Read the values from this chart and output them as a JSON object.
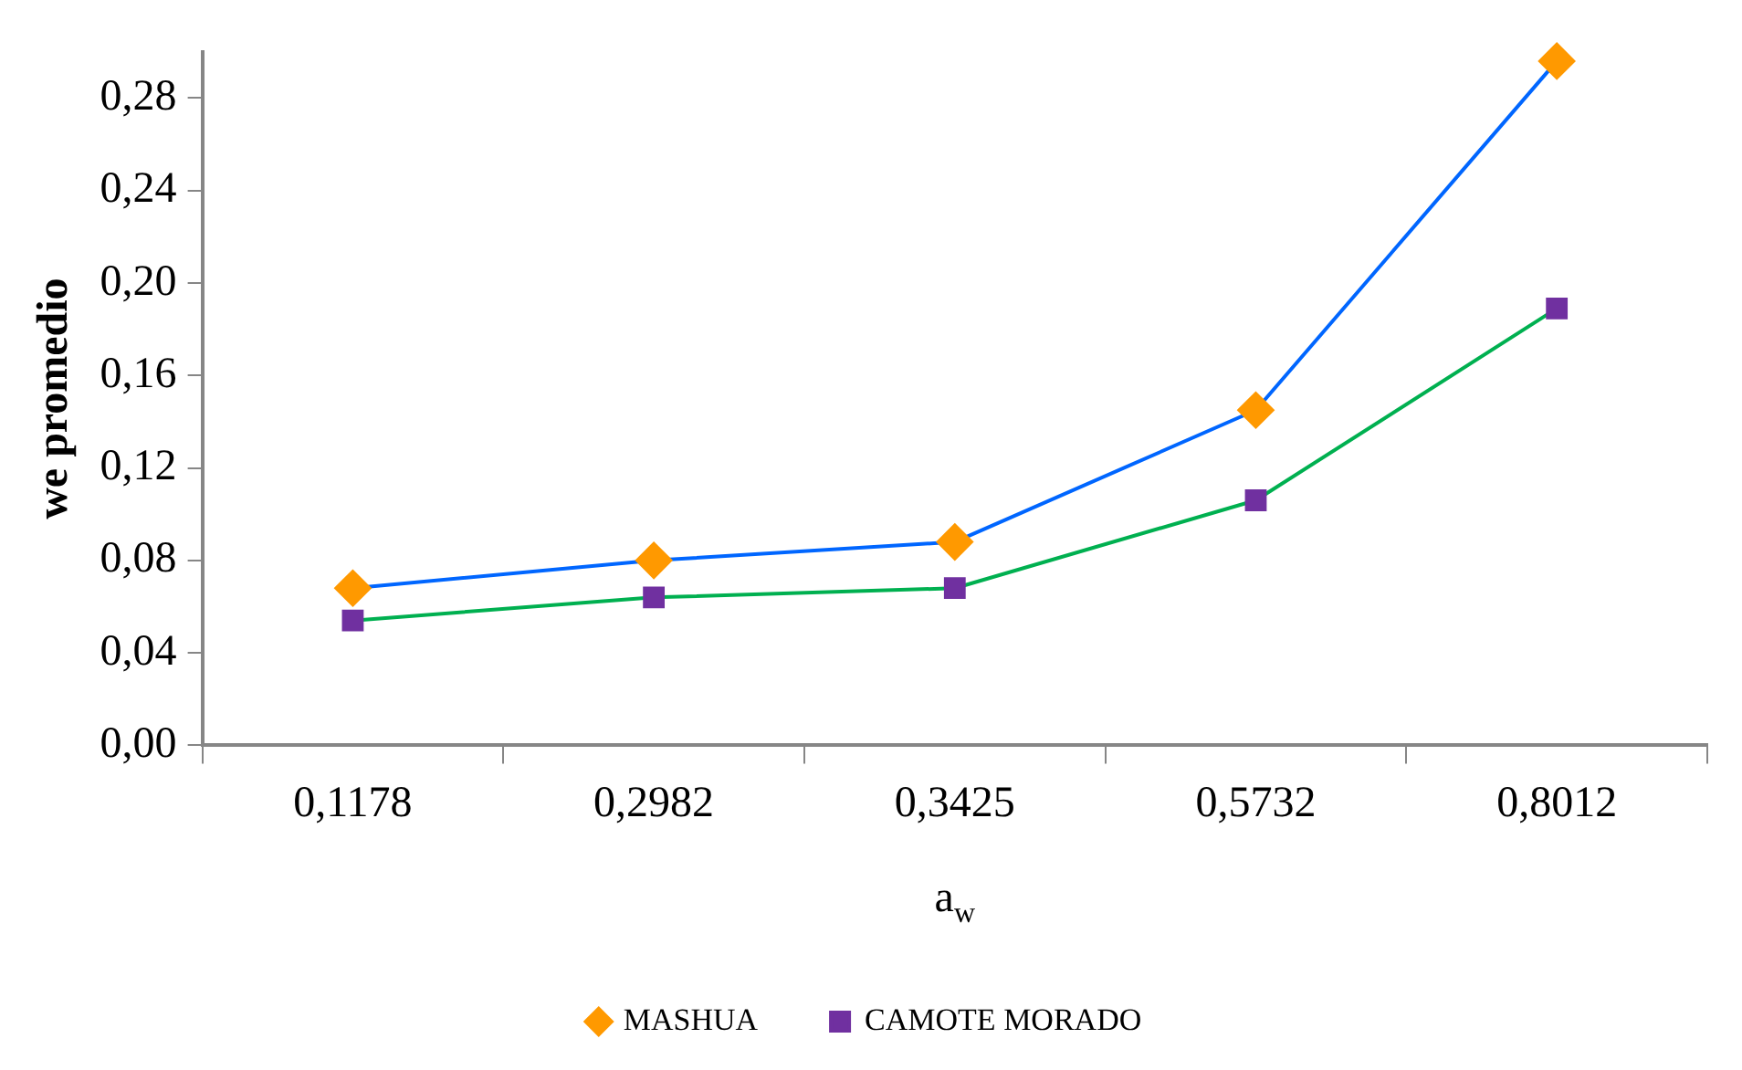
{
  "chart_data": {
    "type": "line",
    "xlabel": "a$_{w}$",
    "ylabel": "we promedio",
    "categories": [
      "0,1178",
      "0,2982",
      "0,3425",
      "0,5732",
      "0,8012"
    ],
    "series": [
      {
        "name": "MASHUA",
        "color": "#0066ff",
        "colors": [
          "#ff9900",
          "#ff9900",
          "#ff9900",
          "#ff9900",
          "#ff9900"
        ],
        "marker": "diamond",
        "values": [
          0.068,
          0.08,
          0.088,
          0.145,
          0.296
        ]
      },
      {
        "name": "CAMOTE MORADO",
        "color": "#00b050",
        "colors": [
          "#7030a0",
          "#7030a0",
          "#7030a0",
          "#7030a0",
          "#7030a0"
        ],
        "marker": "square",
        "values": [
          0.054,
          0.064,
          0.068,
          0.106,
          0.189
        ]
      }
    ],
    "ylim": [
      0,
      0.3
    ],
    "yticks": [
      {
        "value": 0,
        "label": "0,00"
      },
      {
        "value": 0.04,
        "label": "0,04"
      },
      {
        "value": 0.08,
        "label": "0,08"
      },
      {
        "value": 0.12,
        "label": "0,12"
      },
      {
        "value": 0.16,
        "label": "0,16"
      },
      {
        "value": 0.2,
        "label": "0,20"
      },
      {
        "value": 0.24,
        "label": "0,24"
      },
      {
        "value": 0.28,
        "label": "0,28"
      }
    ],
    "grid": false,
    "legend": "bottom"
  }
}
